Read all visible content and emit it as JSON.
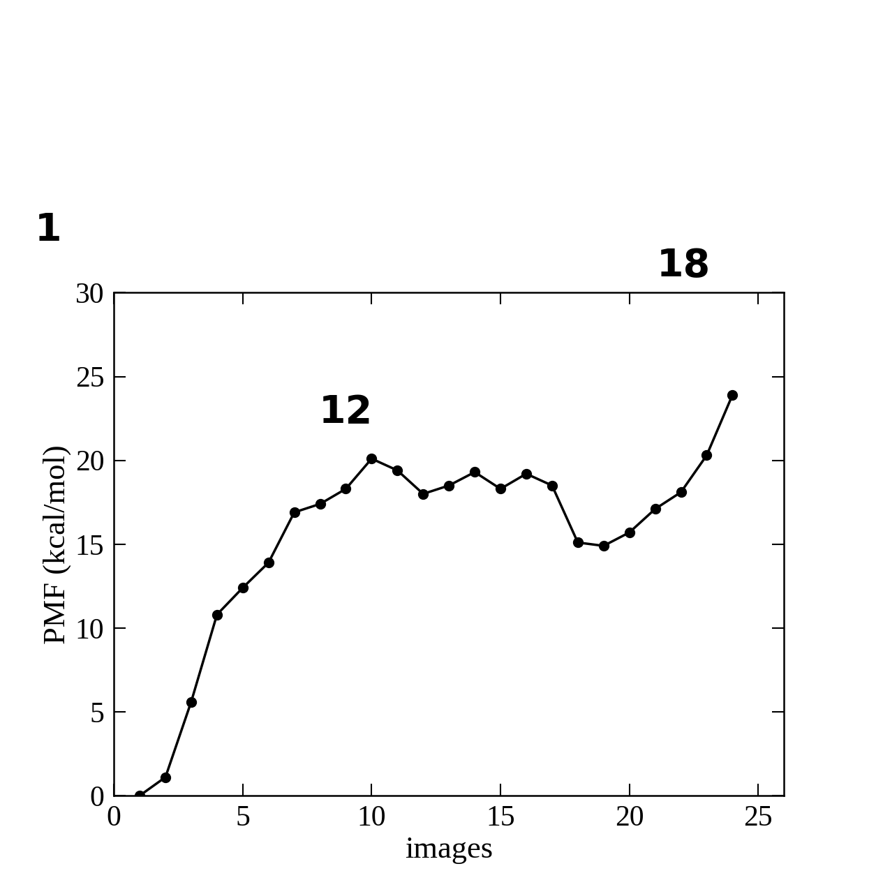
{
  "chart_data": {
    "type": "line",
    "xlabel": "images",
    "ylabel": "PMF (kcal/mol)",
    "annotations": [
      "1",
      "12",
      "18"
    ],
    "x": [
      1,
      2,
      3,
      4,
      5,
      6,
      7,
      8,
      9,
      10,
      11,
      12,
      13,
      14,
      15,
      16,
      17,
      18,
      19,
      20,
      21,
      22,
      23,
      24
    ],
    "values": [
      0,
      1.1,
      5.6,
      10.8,
      12.4,
      13.9,
      16.9,
      17.4,
      18.3,
      20.1,
      19.4,
      18.0,
      18.5,
      19.3,
      18.3,
      19.2,
      18.5,
      15.1,
      14.9,
      15.7,
      17.1,
      18.1,
      20.3,
      23.9
    ],
    "color": "#000000",
    "marker": "o",
    "line_style": "solid",
    "xlim": [
      0,
      26
    ],
    "ylim": [
      0,
      30
    ],
    "xticks": [
      0,
      5,
      10,
      15,
      20,
      25
    ],
    "yticks": [
      0,
      5,
      10,
      15,
      20,
      25,
      30
    ],
    "grid": false
  }
}
